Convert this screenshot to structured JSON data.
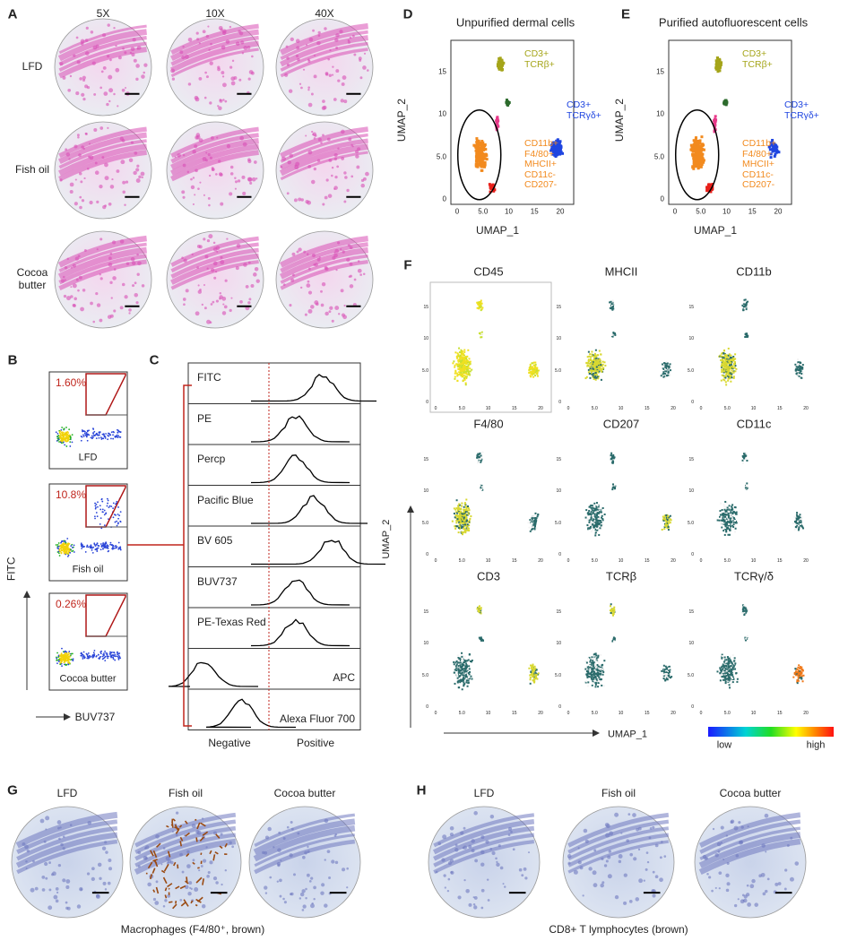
{
  "panels": {
    "A": {
      "label": "A",
      "columns": [
        "5X",
        "10X",
        "40X"
      ],
      "rows": [
        "LFD",
        "Fish oil",
        "Cocoa butter"
      ]
    },
    "B": {
      "label": "B",
      "percentages": [
        "1.60%",
        "10.8%",
        "0.26%"
      ],
      "groups": [
        "LFD",
        "Fish oil",
        "Cocoa butter"
      ],
      "y_axis": "FITC",
      "x_axis": "BUV737"
    },
    "C": {
      "label": "C",
      "channels": [
        "FITC",
        "PE",
        "Percp",
        "Pacific Blue",
        "BV 605",
        "BUV737",
        "PE-Texas Red",
        "APC",
        "Alexa Fluor 700"
      ],
      "x_labels": [
        "Negative",
        "Positive"
      ]
    },
    "D": {
      "label": "D",
      "title": "Unpurified dermal cells",
      "x_axis": "UMAP_1",
      "y_axis": "UMAP_2",
      "x_ticks": [
        "0",
        "5.0",
        "10",
        "15",
        "20"
      ],
      "y_ticks": [
        "0",
        "5.0",
        "10",
        "15"
      ],
      "clusters": [
        [
          "CD3+",
          "TCRβ+"
        ],
        [
          "CD3+",
          "TCRγδ+"
        ],
        [
          "CD11b+",
          "F4/80+",
          "MHCII+",
          "CD11c-",
          "CD207-"
        ]
      ]
    },
    "E": {
      "label": "E",
      "title": "Purified autofluorescent cells",
      "x_axis": "UMAP_1",
      "y_axis": "UMAP_2",
      "x_ticks": [
        "0",
        "5.0",
        "10",
        "15",
        "20"
      ],
      "y_ticks": [
        "0",
        "5.0",
        "10",
        "15"
      ],
      "clusters": [
        [
          "CD3+",
          "TCRβ+"
        ],
        [
          "CD3+",
          "TCRγδ+"
        ],
        [
          "CD11b+",
          "F4/80+",
          "MHCII+",
          "CD11c-",
          "CD207-"
        ]
      ]
    },
    "F": {
      "label": "F",
      "markers": [
        "CD45",
        "MHCII",
        "CD11b",
        "F4/80",
        "CD207",
        "CD11c",
        "CD3",
        "TCRβ",
        "TCRγ/δ"
      ],
      "x_axis": "UMAP_1",
      "y_axis": "UMAP_2",
      "x_ticks": [
        "0",
        "5.0",
        "10",
        "15",
        "20"
      ],
      "y_ticks": [
        "0",
        "5.0",
        "10",
        "15"
      ],
      "scale": [
        "low",
        "high"
      ]
    },
    "G": {
      "label": "G",
      "groups": [
        "LFD",
        "Fish oil",
        "Cocoa butter"
      ],
      "caption": "Macrophages (F4/80⁺, brown)"
    },
    "H": {
      "label": "H",
      "groups": [
        "LFD",
        "Fish oil",
        "Cocoa butter"
      ],
      "caption": "CD8+ T lymphocytes (brown)"
    }
  }
}
